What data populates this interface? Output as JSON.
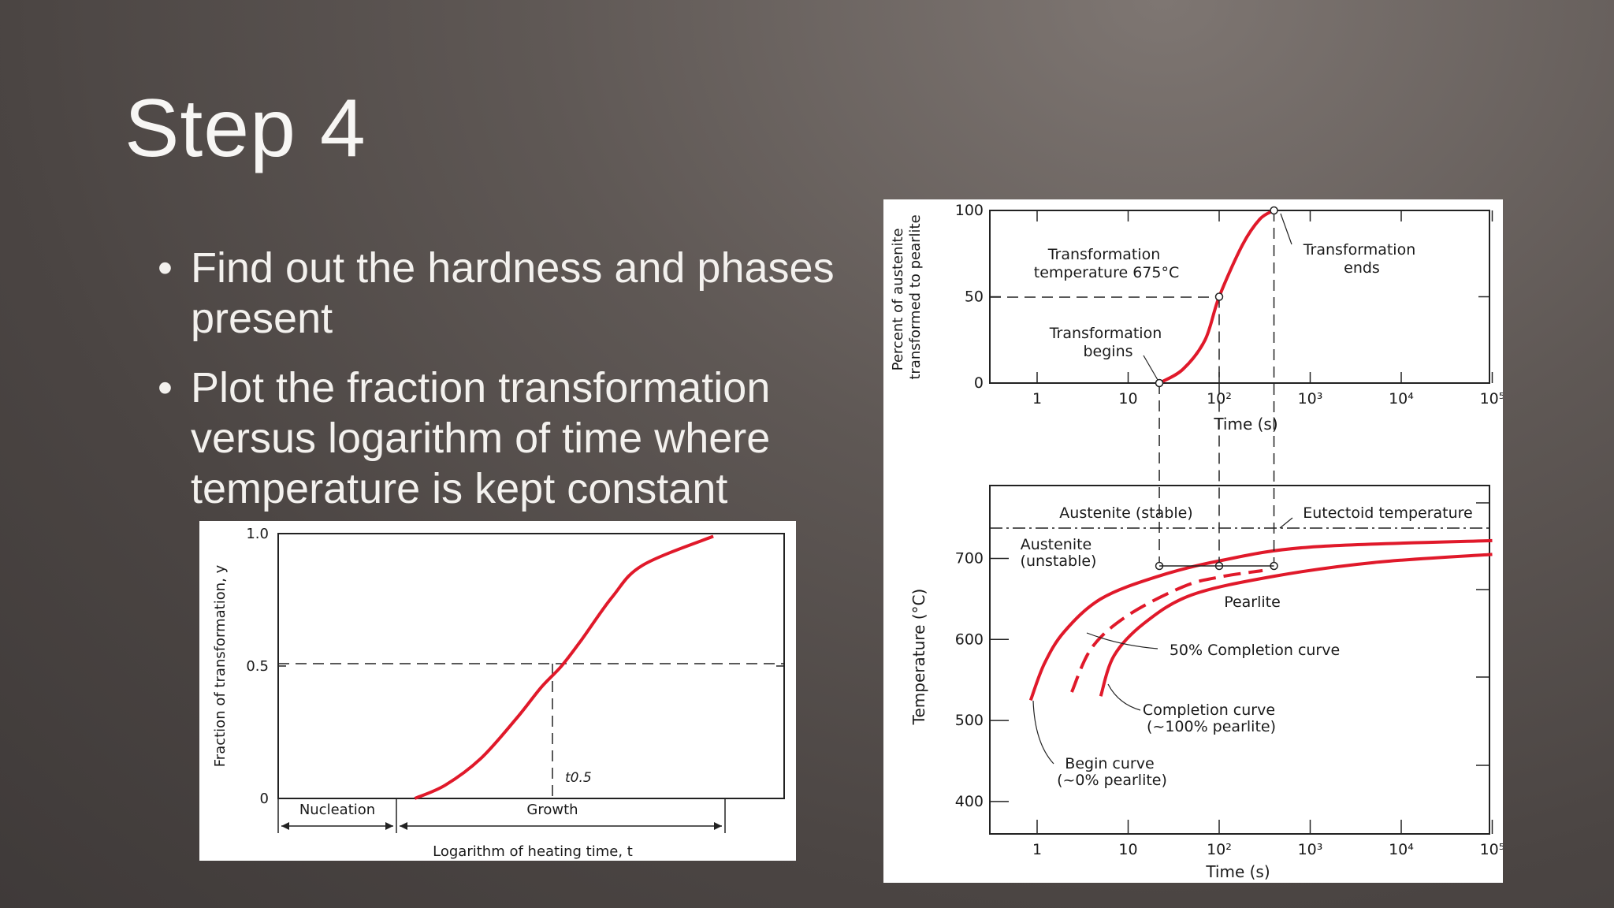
{
  "slide": {
    "title": "Step 4",
    "bullets": [
      "Find out the hardness and phases present",
      "Plot the fraction transformation versus logarithm of time where temperature is kept constant"
    ]
  },
  "colors": {
    "curve": "#e0192a",
    "background": "#5f5855",
    "text": "#f3f1ee"
  },
  "chart_data": [
    {
      "type": "line",
      "title": "",
      "ylabel": "Fraction of transformation, y",
      "xlabel": "Logarithm of heating time, t",
      "yticks": [
        "0",
        "0.5",
        "1.0"
      ],
      "ylim": [
        0,
        1
      ],
      "marker_label": "t0.5",
      "regions": [
        "Nucleation",
        "Growth"
      ],
      "series": [
        {
          "x": [
            0.27,
            0.33,
            0.4,
            0.47,
            0.52,
            0.56,
            0.6,
            0.66,
            0.72,
            0.86
          ],
          "y": [
            0.0,
            0.05,
            0.15,
            0.3,
            0.42,
            0.5,
            0.6,
            0.76,
            0.88,
            0.99
          ]
        }
      ]
    },
    {
      "type": "line",
      "title": "",
      "ylabel": "Percent of austenite transformed to pearlite",
      "xlabel": "Time (s)",
      "x_scale": "log",
      "xticks": [
        "1",
        "10",
        "10²",
        "10³",
        "10⁴",
        "10⁵"
      ],
      "yticks": [
        "0",
        "50",
        "100"
      ],
      "ylim": [
        0,
        100
      ],
      "annotations": [
        "Transformation temperature 675°C",
        "Transformation ends",
        "Transformation begins"
      ],
      "series": [
        {
          "x": [
            22,
            40,
            70,
            100,
            180,
            280,
            400
          ],
          "y": [
            0,
            8,
            25,
            50,
            80,
            95,
            100
          ]
        }
      ]
    },
    {
      "type": "line",
      "title": "",
      "ylabel": "Temperature (°C)",
      "xlabel": "Time (s)",
      "x_scale": "log",
      "xticks": [
        "1",
        "10",
        "10²",
        "10³",
        "10⁴",
        "10⁵"
      ],
      "yticks": [
        "400",
        "500",
        "600",
        "700"
      ],
      "ylim": [
        360,
        790
      ],
      "annotations": [
        "Austenite (stable)",
        "Eutectoid temperature",
        "Austenite (unstable)",
        "Pearlite",
        "50% Completion curve",
        "Completion curve",
        "(~100% pearlite)",
        "Begin curve",
        "(~0% pearlite)"
      ],
      "series": [
        {
          "name": "Begin curve",
          "x": [
            0.85,
            1.2,
            2,
            5,
            20,
            100,
            1000,
            100000
          ],
          "y": [
            525,
            570,
            610,
            650,
            677,
            697,
            714,
            722
          ]
        },
        {
          "name": "50% Completion curve",
          "x": [
            2.4,
            4,
            10,
            40,
            100,
            300
          ],
          "y": [
            535,
            590,
            630,
            665,
            677,
            685
          ]
        },
        {
          "name": "Completion curve",
          "x": [
            5,
            7,
            15,
            50,
            400,
            5000,
            100000
          ],
          "y": [
            530,
            580,
            620,
            655,
            678,
            695,
            705
          ]
        }
      ]
    }
  ]
}
